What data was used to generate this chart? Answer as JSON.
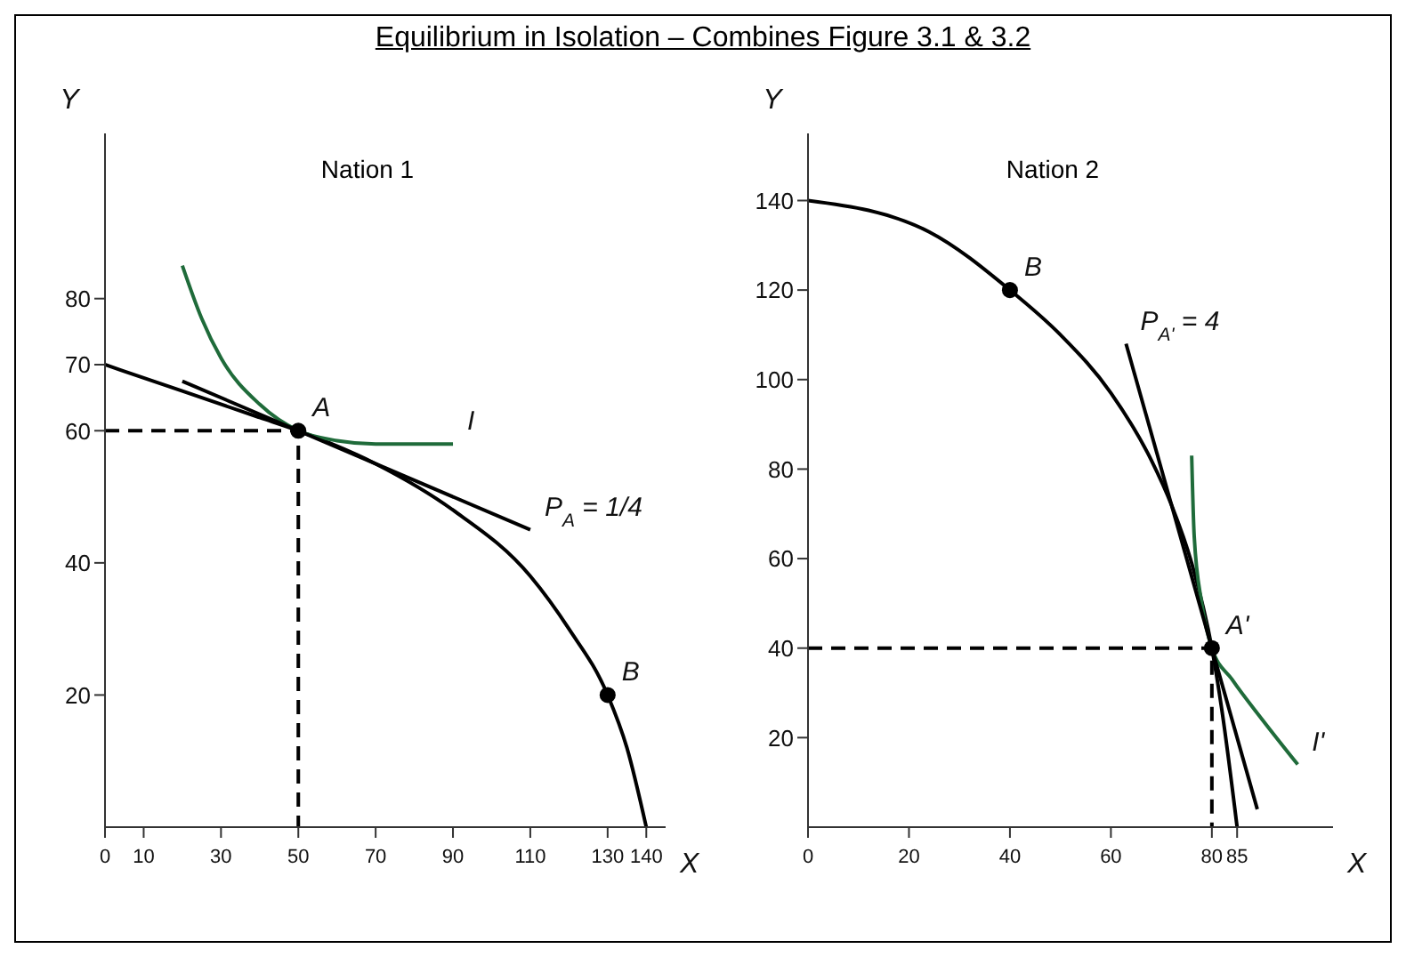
{
  "chart_data": [
    {
      "type": "line",
      "title": "Equilibrium in Isolation – Combines Figure 3.1 & 3.2",
      "subtitle": "Nation 1",
      "xlabel": "X",
      "ylabel": "Y",
      "xlim": [
        0,
        145
      ],
      "ylim": [
        0,
        105
      ],
      "xticks": [
        0,
        10,
        30,
        50,
        70,
        90,
        110,
        130,
        140
      ],
      "yticks": [
        20,
        40,
        60,
        70,
        80
      ],
      "grid": false,
      "series": [
        {
          "color": "#000000",
          "x": [
            0,
            20,
            40,
            50,
            70,
            90,
            110,
            120,
            130,
            135,
            140
          ],
          "values": [
            70,
            66,
            62,
            60,
            55,
            48,
            38,
            30,
            20,
            12,
            0
          ],
          "line_style": "solid",
          "marker": "none"
        },
        {
          "color": "#1f6b3a",
          "x": [
            20,
            25,
            30,
            40,
            50,
            60,
            70,
            90
          ],
          "values": [
            85,
            77,
            71,
            64,
            60,
            58.5,
            58,
            58
          ],
          "line_style": "solid",
          "marker": "none"
        },
        {
          "color": "#000000",
          "x": [
            20,
            110
          ],
          "values": [
            67.5,
            45
          ],
          "line_style": "solid",
          "marker": "none"
        },
        {
          "color": "#000000",
          "x": [
            0,
            50,
            50
          ],
          "values": [
            60,
            60,
            0
          ],
          "line_style": "dashed",
          "marker": "none"
        },
        {
          "type": "scatter",
          "color": "#000000",
          "x": [
            50,
            130
          ],
          "values": [
            60,
            20
          ],
          "marker": "circle"
        }
      ],
      "annotations": [
        {
          "text": "A",
          "x": 50,
          "y": 60
        },
        {
          "text": "B",
          "x": 130,
          "y": 20
        },
        {
          "text": "I",
          "x": 90,
          "y": 58
        },
        {
          "text": "P$_{A}$ = 1/4",
          "x": 110,
          "y": 45
        }
      ]
    },
    {
      "type": "line",
      "subtitle": "Nation 2",
      "xlabel": "X",
      "ylabel": "Y",
      "xlim": [
        0,
        104
      ],
      "ylim": [
        0,
        155
      ],
      "xticks": [
        0,
        20,
        40,
        60,
        80,
        85
      ],
      "yticks": [
        20,
        40,
        60,
        80,
        100,
        120,
        140
      ],
      "grid": false,
      "series": [
        {
          "color": "#000000",
          "x": [
            0,
            24,
            40,
            50,
            60,
            68,
            72,
            76,
            80,
            82,
            85
          ],
          "values": [
            140,
            133,
            120,
            110,
            97,
            82,
            72,
            59,
            40,
            26,
            0
          ],
          "line_style": "solid",
          "marker": "none"
        },
        {
          "color": "#1f6b3a",
          "x": [
            76,
            76.5,
            78,
            80,
            84,
            90,
            97
          ],
          "values": [
            83,
            65,
            50,
            40,
            33,
            24,
            14
          ],
          "line_style": "solid",
          "marker": "none"
        },
        {
          "color": "#000000",
          "x": [
            63,
            89
          ],
          "values": [
            108,
            4
          ],
          "line_style": "solid",
          "marker": "none"
        },
        {
          "color": "#000000",
          "x": [
            0,
            80,
            80
          ],
          "values": [
            40,
            40,
            0
          ],
          "line_style": "dashed",
          "marker": "none"
        },
        {
          "type": "scatter",
          "color": "#000000",
          "x": [
            40,
            80
          ],
          "values": [
            120,
            40
          ],
          "marker": "circle"
        }
      ],
      "annotations": [
        {
          "text": "B",
          "x": 40,
          "y": 120
        },
        {
          "text": "A'",
          "x": 80,
          "y": 40
        },
        {
          "text": "I'",
          "x": 97,
          "y": 14
        },
        {
          "text": "P$_{A'}$ = 4",
          "x": 63,
          "y": 108
        }
      ]
    }
  ]
}
